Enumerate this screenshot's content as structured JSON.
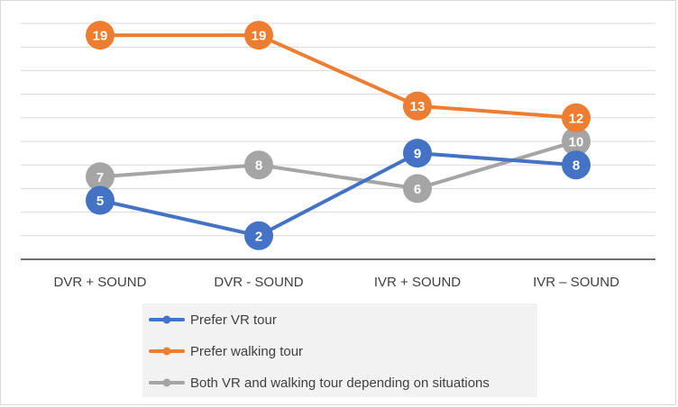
{
  "chart_data": {
    "type": "line",
    "categories": [
      "DVR + SOUND",
      "DVR - SOUND",
      "IVR + SOUND",
      "IVR – SOUND"
    ],
    "series": [
      {
        "name": "Prefer VR tour",
        "values": [
          5,
          2,
          9,
          8
        ],
        "color": "#4472c4"
      },
      {
        "name": "Prefer walking tour",
        "values": [
          19,
          19,
          13,
          12
        ],
        "color": "#ed7d31"
      },
      {
        "name": "Both VR and walking tour depending on situations",
        "values": [
          7,
          8,
          6,
          10
        ],
        "color": "#a5a5a5"
      }
    ],
    "ylim": [
      0,
      20
    ],
    "grid": true,
    "legend": "bottom",
    "data_labels": true
  }
}
